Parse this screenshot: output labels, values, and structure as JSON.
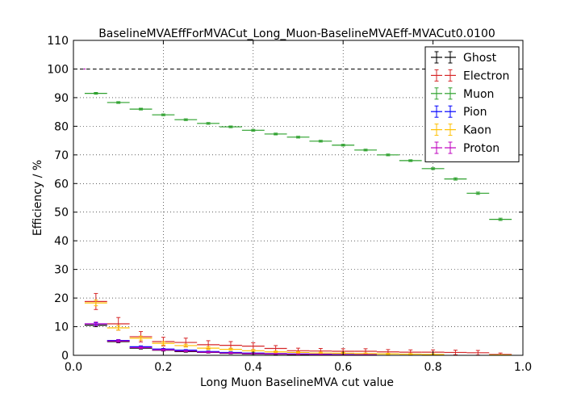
{
  "chart_data": {
    "type": "scatter",
    "title": "BaselineMVAEffForMVACut_Long_Muon-BaselineMVAEff-MVACut0.0100",
    "xlabel": "Long Muon BaselineMVA cut value",
    "ylabel": "Efficiency / %",
    "xlim": [
      0,
      1
    ],
    "ylim": [
      0,
      110
    ],
    "xticks": [
      "0.0",
      "0.2",
      "0.4",
      "0.6",
      "0.8",
      "1.0"
    ],
    "yticks": [
      "0",
      "10",
      "20",
      "30",
      "40",
      "50",
      "60",
      "70",
      "80",
      "90",
      "100",
      "110"
    ],
    "grid": true,
    "legend_position": "top-right",
    "reference_line": {
      "y": 100,
      "style": "dashed"
    },
    "series": [
      {
        "name": "Ghost",
        "color": "#000000",
        "x": [
          0.05,
          0.1,
          0.15,
          0.2,
          0.25,
          0.3,
          0.35,
          0.4,
          0.45,
          0.5,
          0.55,
          0.6,
          0.65
        ],
        "y": [
          10.5,
          4.8,
          2.5,
          1.8,
          1.3,
          1.0,
          0.7,
          0.5,
          0.4,
          0.3,
          0.2,
          0.15,
          0.1
        ],
        "xerr": 0.025,
        "yerr": [
          0.5,
          0.4,
          0.3,
          0.3,
          0.2,
          0.2,
          0.2,
          0.1,
          0.1,
          0.1,
          0.1,
          0.1,
          0.1
        ]
      },
      {
        "name": "Electron",
        "color": "#d62728",
        "x": [
          0.05,
          0.1,
          0.15,
          0.2,
          0.25,
          0.3,
          0.35,
          0.4,
          0.45,
          0.5,
          0.55,
          0.6,
          0.65,
          0.7,
          0.75,
          0.8,
          0.85,
          0.9,
          0.95
        ],
        "y": [
          18.8,
          11.0,
          6.5,
          4.8,
          4.5,
          3.7,
          3.5,
          3.2,
          2.4,
          1.6,
          1.5,
          1.4,
          1.4,
          1.2,
          1.1,
          1.1,
          1.0,
          0.9,
          0.3
        ],
        "xerr": 0.025,
        "yerr": [
          2.8,
          2.2,
          1.8,
          1.5,
          1.5,
          1.4,
          1.3,
          1.2,
          1.0,
          0.9,
          0.9,
          0.9,
          0.9,
          0.8,
          0.8,
          0.8,
          0.8,
          0.8,
          0.5
        ]
      },
      {
        "name": "Muon",
        "color": "#2ca02c",
        "x": [
          0.05,
          0.1,
          0.15,
          0.2,
          0.25,
          0.3,
          0.35,
          0.4,
          0.45,
          0.5,
          0.55,
          0.6,
          0.65,
          0.7,
          0.75,
          0.8,
          0.85,
          0.9,
          0.95
        ],
        "y": [
          91.5,
          88.3,
          86.0,
          84.0,
          82.3,
          81.0,
          79.8,
          78.6,
          77.3,
          76.2,
          74.8,
          73.4,
          71.7,
          70.0,
          68.0,
          65.2,
          61.6,
          56.6,
          47.5
        ],
        "xerr": 0.025,
        "yerr": [
          0.3,
          0.3,
          0.3,
          0.3,
          0.3,
          0.3,
          0.3,
          0.3,
          0.3,
          0.3,
          0.3,
          0.3,
          0.3,
          0.3,
          0.3,
          0.3,
          0.4,
          0.4,
          0.4
        ]
      },
      {
        "name": "Pion",
        "color": "#0000ff",
        "x": [
          0.05,
          0.1,
          0.15,
          0.2,
          0.25,
          0.3,
          0.35,
          0.4,
          0.45,
          0.5,
          0.55,
          0.6,
          0.65
        ],
        "y": [
          11.0,
          5.2,
          3.0,
          2.2,
          1.8,
          1.3,
          1.0,
          0.8,
          0.6,
          0.5,
          0.4,
          0.3,
          0.2
        ],
        "xerr": 0.025,
        "yerr": [
          0.4,
          0.3,
          0.3,
          0.2,
          0.2,
          0.2,
          0.2,
          0.1,
          0.1,
          0.1,
          0.1,
          0.1,
          0.1
        ]
      },
      {
        "name": "Kaon",
        "color": "#ffc000",
        "x": [
          0.05,
          0.1,
          0.15,
          0.2,
          0.25,
          0.3,
          0.35,
          0.4,
          0.45,
          0.5,
          0.55,
          0.6,
          0.65,
          0.7,
          0.75,
          0.8,
          0.95
        ],
        "y": [
          18.3,
          9.6,
          6.0,
          4.2,
          3.4,
          2.5,
          2.1,
          1.6,
          1.2,
          1.0,
          0.8,
          0.7,
          0.6,
          0.5,
          0.4,
          0.3,
          0.1
        ],
        "xerr": 0.025,
        "yerr": [
          1.0,
          0.8,
          0.7,
          0.6,
          0.5,
          0.5,
          0.4,
          0.4,
          0.3,
          0.3,
          0.3,
          0.3,
          0.2,
          0.2,
          0.2,
          0.2,
          0.1
        ]
      },
      {
        "name": "Proton",
        "color": "#bf00bf",
        "x": [
          0.025,
          0.05,
          0.1,
          0.15,
          0.2,
          0.25,
          0.3,
          0.35,
          0.4,
          0.45,
          0.5,
          0.55,
          0.6,
          0.65
        ],
        "y": [
          100.0,
          11.0,
          5.0,
          2.7,
          1.9,
          1.5,
          1.1,
          0.8,
          0.6,
          0.5,
          0.4,
          0.3,
          0.2,
          0.2
        ],
        "xerr": [
          0.002,
          0.025,
          0.025,
          0.025,
          0.025,
          0.025,
          0.025,
          0.025,
          0.025,
          0.025,
          0.025,
          0.025,
          0.025,
          0.025
        ],
        "yerr": [
          0.0,
          0.6,
          0.4,
          0.3,
          0.3,
          0.2,
          0.2,
          0.2,
          0.1,
          0.1,
          0.1,
          0.1,
          0.1,
          0.1
        ]
      }
    ]
  }
}
